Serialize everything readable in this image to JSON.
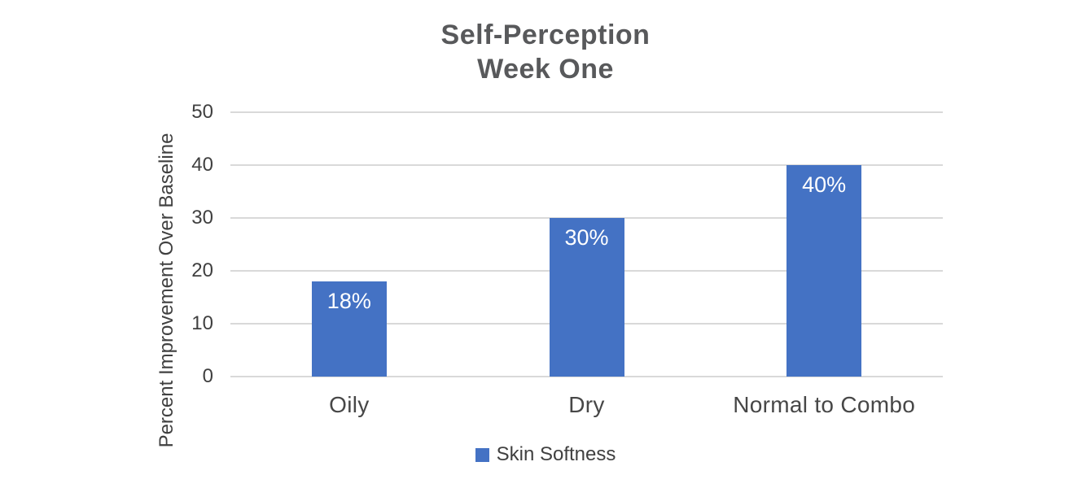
{
  "title": {
    "line1": "Self-Perception",
    "line2": "Week One"
  },
  "chart_data": {
    "type": "bar",
    "title": "Self-Perception Week One",
    "categories": [
      "Oily",
      "Dry",
      "Normal to Combo"
    ],
    "series": [
      {
        "name": "Skin Softness",
        "values": [
          18,
          30,
          40
        ]
      }
    ],
    "data_labels": [
      "18%",
      "30%",
      "40%"
    ],
    "xlabel": "",
    "ylabel": "Percent Improvement Over Baseline",
    "ylim": [
      0,
      50
    ],
    "yticks": [
      0,
      10,
      20,
      30,
      40,
      50
    ],
    "grid": true,
    "legend_position": "bottom"
  },
  "legend": {
    "label": "Skin Softness"
  },
  "colors": {
    "bar": "#4472C4",
    "gridline": "#D9D9D9",
    "title_text": "#58595B",
    "axis_text": "#404040",
    "data_label_text": "#FFFFFF",
    "background": "#FFFFFF"
  }
}
